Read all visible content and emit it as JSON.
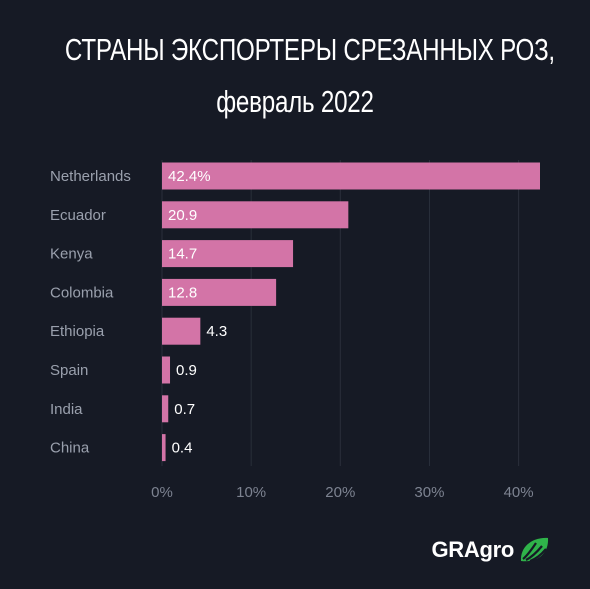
{
  "title_lines": [
    "СТРАНЫ ЭКСПОРТЕРЫ СРЕЗАННЫХ РОЗ,",
    "февраль 2022"
  ],
  "brand": {
    "name": "GRAgro",
    "logo_icon": "leaf-icon",
    "logo_color": "#2fb34a"
  },
  "colors": {
    "bar": "#d374a7",
    "background": "#161a25",
    "grid": "#2a2f3b"
  },
  "chart_data": {
    "type": "bar",
    "orientation": "horizontal",
    "title": "СТРАНЫ ЭКСПОРТЕРЫ СРЕЗАННЫХ РОЗ, февраль 2022",
    "categories": [
      "Netherlands",
      "Ecuador",
      "Kenya",
      "Colombia",
      "Ethiopia",
      "Spain",
      "India",
      "China"
    ],
    "values": [
      42.4,
      20.9,
      14.7,
      12.8,
      4.3,
      0.9,
      0.7,
      0.4
    ],
    "value_labels": [
      "42.4%",
      "20.9",
      "14.7",
      "12.8",
      "4.3",
      "0.9",
      "0.7",
      "0.4"
    ],
    "xticks": [
      "0%",
      "10%",
      "20%",
      "30%",
      "40%"
    ],
    "xtick_values": [
      0,
      10,
      20,
      30,
      40
    ],
    "xlim": [
      0,
      42.4
    ],
    "grid": true
  }
}
